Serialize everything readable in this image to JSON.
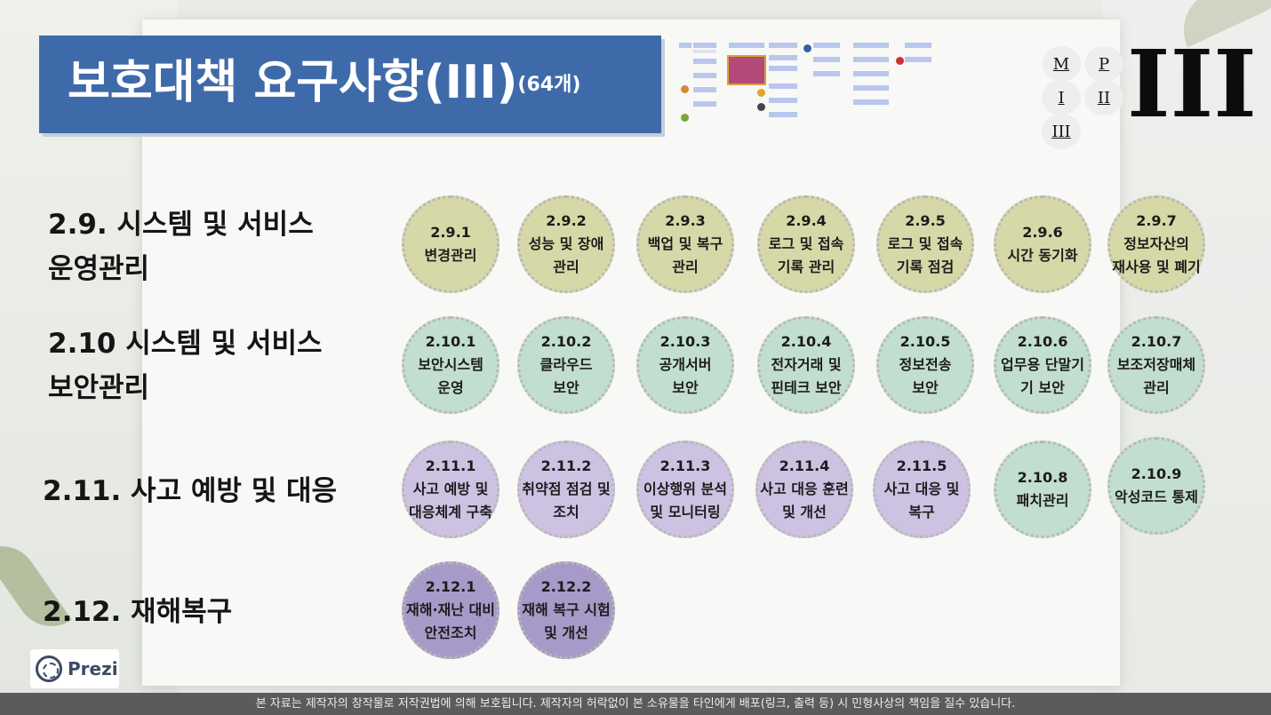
{
  "title": {
    "main": "보호대책 요구사항(III)",
    "count": "(64개)"
  },
  "nav": {
    "buttons": [
      {
        "id": "m",
        "label": "M"
      },
      {
        "id": "p",
        "label": "P"
      },
      {
        "id": "i",
        "label": "I"
      },
      {
        "id": "ii",
        "label": "II"
      },
      {
        "id": "iii",
        "label": "III"
      }
    ],
    "big_numeral": "III"
  },
  "categories": [
    {
      "line1": "2.9. 시스템 및 서비스",
      "line2": "운영관리"
    },
    {
      "line1": "2.10 시스템 및 서비스",
      "line2": "보안관리"
    },
    {
      "line1": "2.11. 사고 예방 및 대응",
      "line2": ""
    },
    {
      "line1": "2.12. 재해복구",
      "line2": ""
    }
  ],
  "rows": [
    {
      "color": "#d7d8a8",
      "items": [
        {
          "code": "2.9.1",
          "l1": "변경관리",
          "l2": ""
        },
        {
          "code": "2.9.2",
          "l1": "성능 및 장애",
          "l2": "관리"
        },
        {
          "code": "2.9.3",
          "l1": "백업 및 복구",
          "l2": "관리"
        },
        {
          "code": "2.9.4",
          "l1": "로그 및 접속",
          "l2": "기록 관리"
        },
        {
          "code": "2.9.5",
          "l1": "로그 및 접속",
          "l2": "기록 점검"
        },
        {
          "code": "2.9.6",
          "l1": "시간 동기화",
          "l2": ""
        },
        {
          "code": "2.9.7",
          "l1": "정보자산의",
          "l2": "재사용 및 폐기"
        }
      ]
    },
    {
      "color": "#c2dece",
      "items": [
        {
          "code": "2.10.1",
          "l1": "보안시스템",
          "l2": "운영"
        },
        {
          "code": "2.10.2",
          "l1": "클라우드",
          "l2": "보안"
        },
        {
          "code": "2.10.3",
          "l1": "공개서버",
          "l2": "보안"
        },
        {
          "code": "2.10.4",
          "l1": "전자거래 및",
          "l2": "핀테크 보안"
        },
        {
          "code": "2.10.5",
          "l1": "정보전송",
          "l2": "보안"
        },
        {
          "code": "2.10.6",
          "l1": "업무용 단말기",
          "l2": "기 보안"
        },
        {
          "code": "2.10.7",
          "l1": "보조저장매체",
          "l2": "관리"
        }
      ]
    },
    {
      "color": "#cdc2e2",
      "items": [
        {
          "code": "2.11.1",
          "l1": "사고 예방 및",
          "l2": "대응체계 구축"
        },
        {
          "code": "2.11.2",
          "l1": "취약점 점검 및",
          "l2": "조치"
        },
        {
          "code": "2.11.3",
          "l1": "이상행위 분석",
          "l2": "및 모니터링"
        },
        {
          "code": "2.11.4",
          "l1": "사고 대응 훈련",
          "l2": "및 개선"
        },
        {
          "code": "2.11.5",
          "l1": "사고 대응 및",
          "l2": "복구"
        },
        {
          "code": "2.10.8",
          "l1": "패치관리",
          "l2": ""
        },
        {
          "code": "2.10.9",
          "l1": "악성코드 통제",
          "l2": ""
        }
      ]
    },
    {
      "color": "#a79ac9",
      "items": [
        {
          "code": "2.12.1",
          "l1": "재해·재난 대비",
          "l2": "안전조치"
        },
        {
          "code": "2.12.2",
          "l1": "재해 복구 시험",
          "l2": "및 개선"
        }
      ]
    }
  ],
  "branding": {
    "logo_text": "Prezi"
  },
  "footer": {
    "notice": "본 자료는 제작자의 창작물로 저작권법에 의해 보호됩니다. 제작자의 허락없이 본 소유물을 타인에게 배포(링크, 출력 등) 시 민형사상의 책임을 질수 있습니다."
  }
}
